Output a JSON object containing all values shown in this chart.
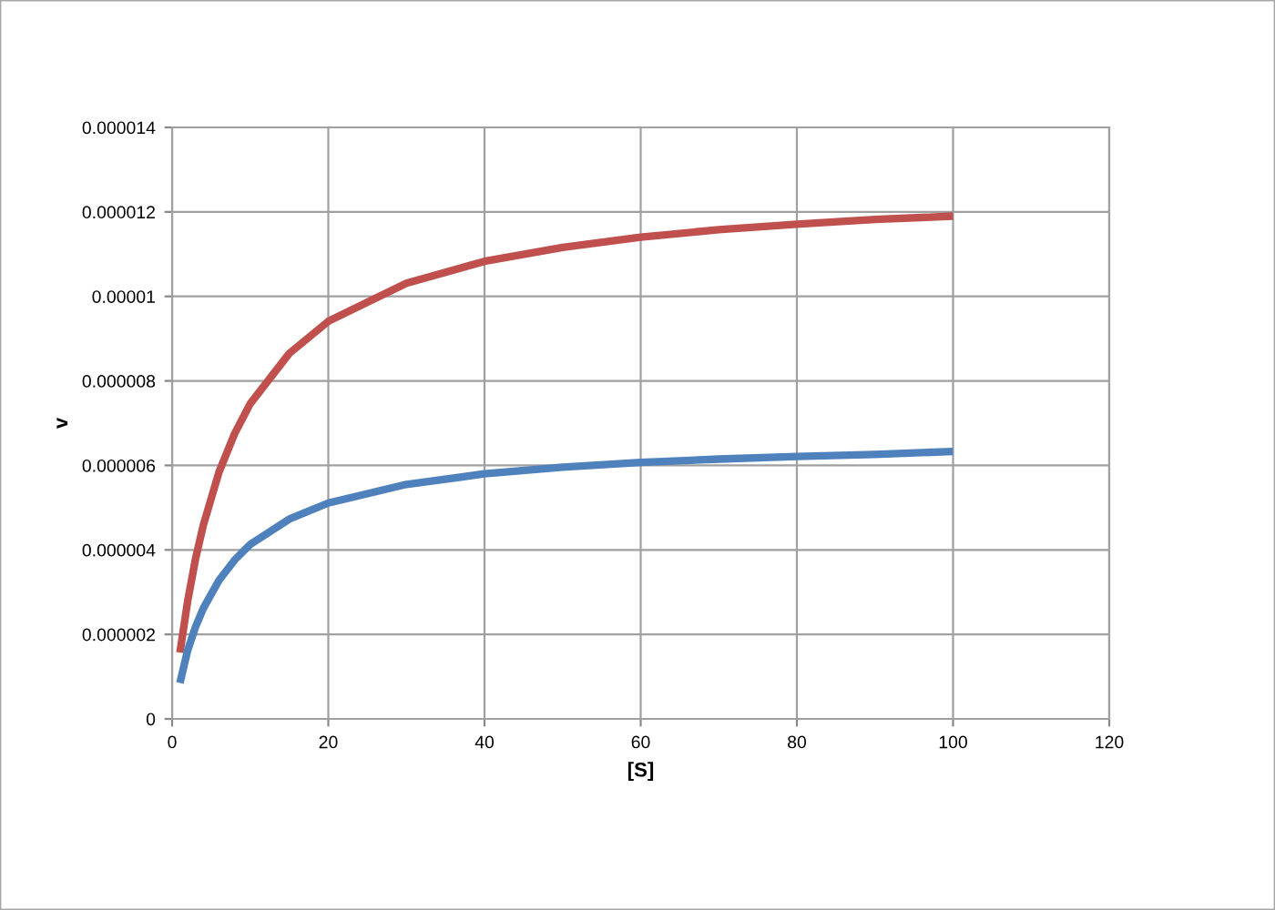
{
  "chart_data": {
    "type": "line",
    "xlabel": "[S]",
    "ylabel": "v",
    "x": [
      1,
      2,
      3,
      4,
      6,
      8,
      10,
      15,
      20,
      30,
      40,
      50,
      60,
      70,
      80,
      90,
      100
    ],
    "series": [
      {
        "color": "#c0504d",
        "values": [
          1.57e-06,
          2.8e-06,
          3.79e-06,
          4.59e-06,
          5.84e-06,
          6.75e-06,
          7.46e-06,
          8.65e-06,
          9.41e-06,
          1.031e-05,
          1.083e-05,
          1.116e-05,
          1.14e-05,
          1.158e-05,
          1.171e-05,
          1.182e-05,
          1.19e-05
        ]
      },
      {
        "color": "#4f81bd",
        "values": [
          8.5e-07,
          1.63e-06,
          2.18e-06,
          2.62e-06,
          3.28e-06,
          3.76e-06,
          4.13e-06,
          4.73e-06,
          5.11e-06,
          5.55e-06,
          5.8e-06,
          5.96e-06,
          6.07e-06,
          6.15e-06,
          6.21e-06,
          6.26e-06,
          6.33e-06
        ]
      }
    ],
    "xlim": [
      0,
      120
    ],
    "xticks": [
      0,
      20,
      40,
      60,
      80,
      100,
      120
    ],
    "ylim": [
      0,
      1.4e-05
    ],
    "yticks": [
      0,
      {
        "value": 2e-06,
        "label": "0.000002"
      },
      {
        "value": 4e-06,
        "label": "0.000004"
      },
      {
        "value": 6e-06,
        "label": "0.000006"
      },
      {
        "value": 8e-06,
        "label": "0.000008"
      },
      {
        "value": 1e-05,
        "label": "0.00001"
      },
      {
        "value": 1.2e-05,
        "label": "0.000012"
      },
      {
        "value": 1.4e-05,
        "label": "0.000014"
      }
    ],
    "grid": true,
    "legend": false,
    "marker": "none",
    "line_style": "solid"
  }
}
